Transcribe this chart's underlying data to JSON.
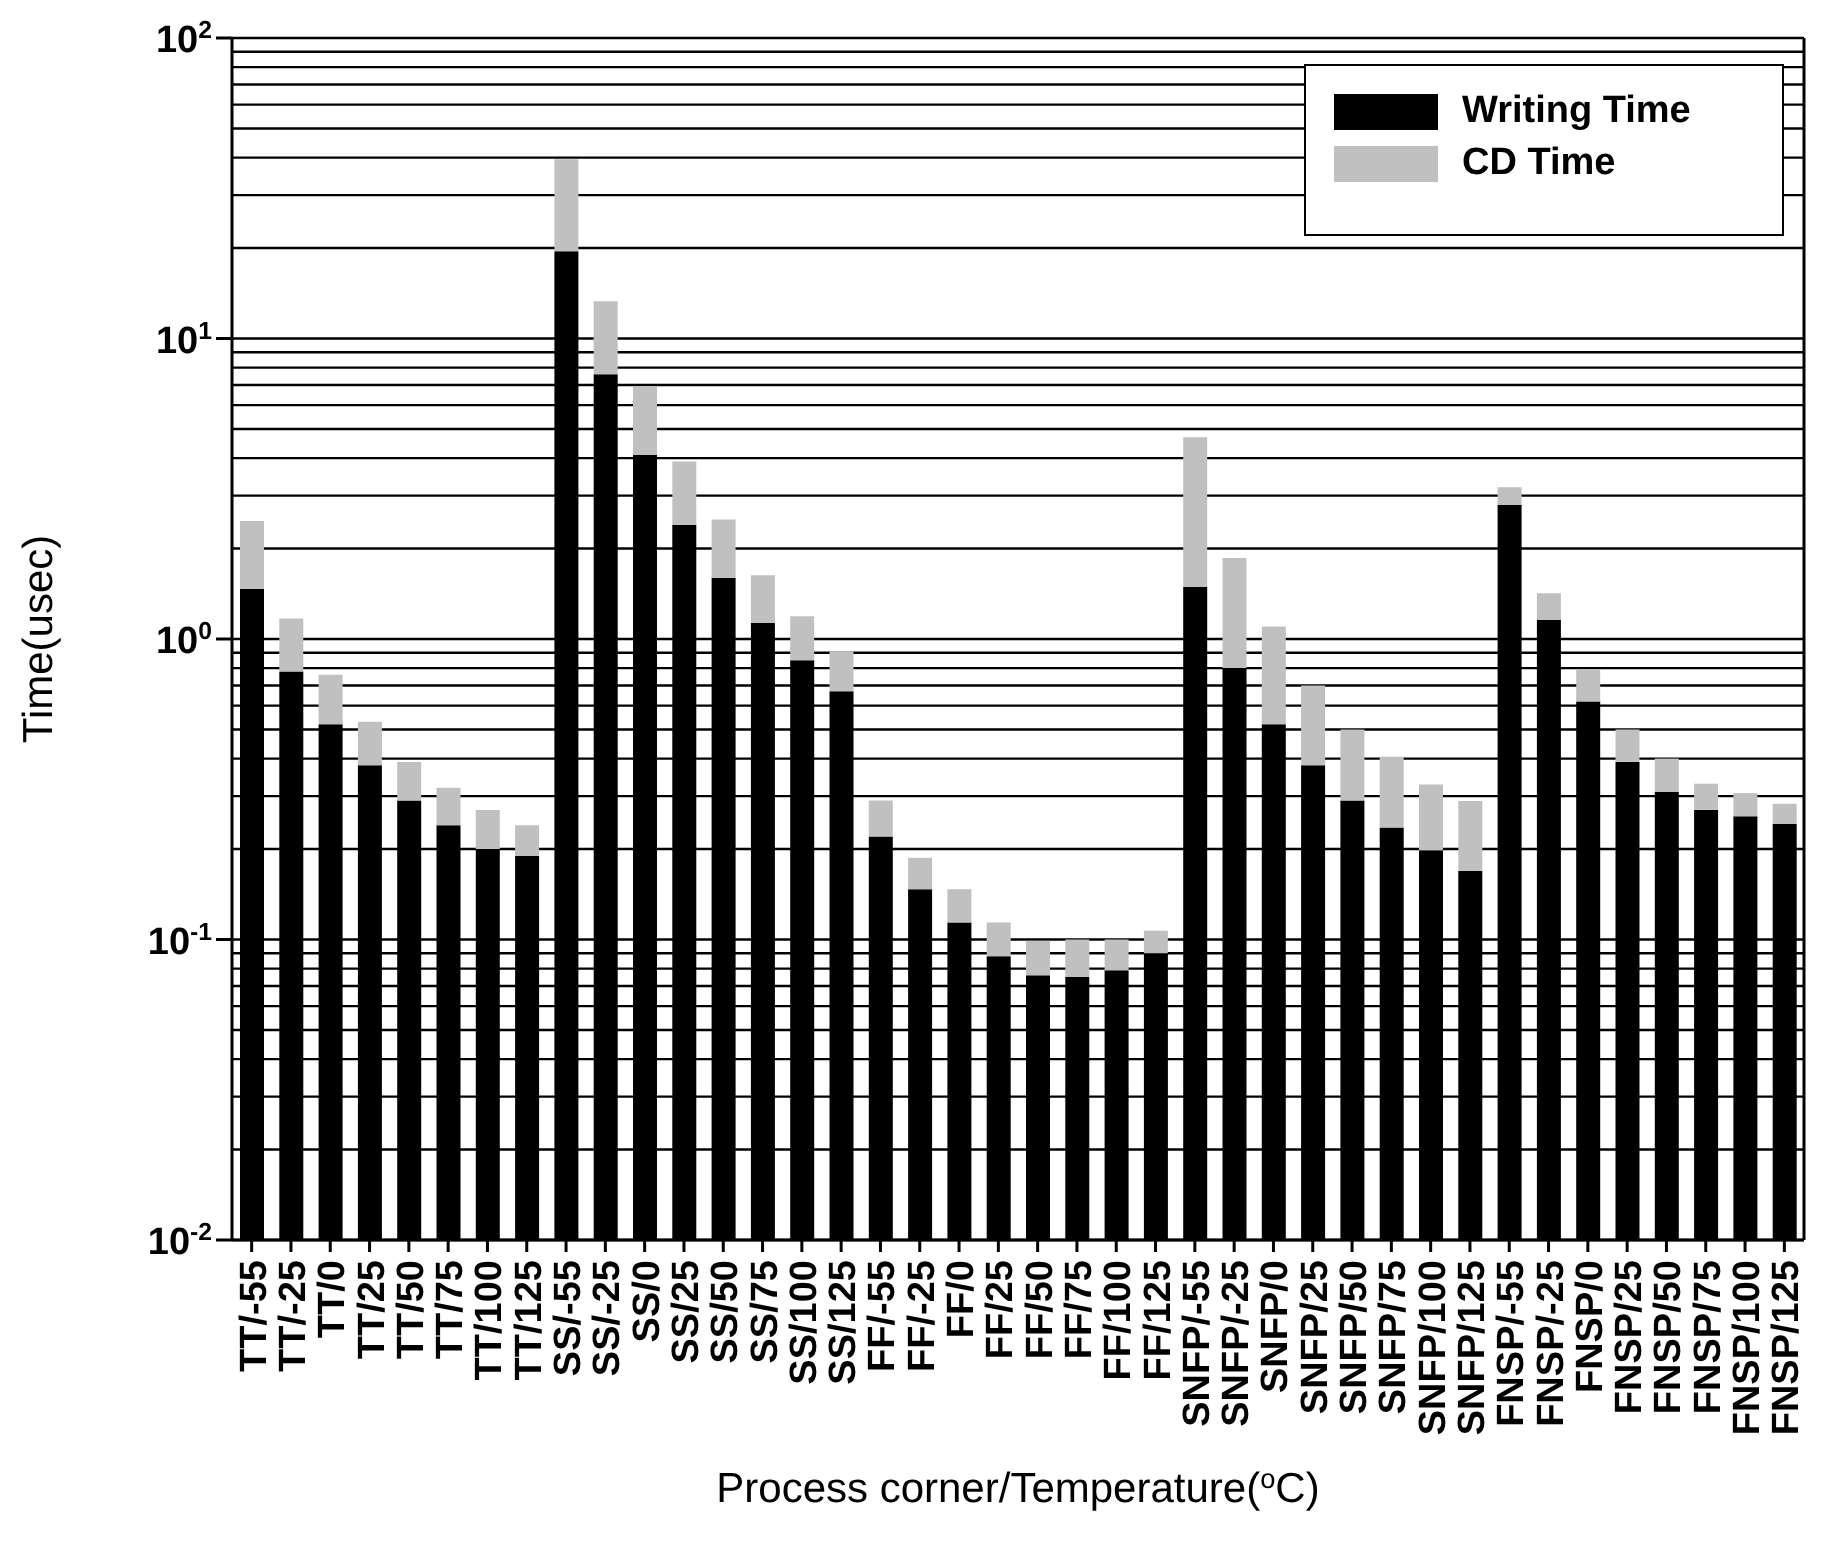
{
  "chart_data": {
    "type": "bar",
    "stacked": true,
    "log": true,
    "xlabel": "Process corner/Temperature($^{o}$C)",
    "ylabel": "Time(usec)",
    "categories": [
      "TT/-55",
      "TT/-25",
      "TT/0",
      "TT/25",
      "TT/50",
      "TT/75",
      "TT/100",
      "TT/125",
      "SS/-55",
      "SS/-25",
      "SS/0",
      "SS/25",
      "SS/50",
      "SS/75",
      "SS/100",
      "SS/125",
      "FF/-55",
      "FF/-25",
      "FF/0",
      "FF/25",
      "FF/50",
      "FF/75",
      "FF/100",
      "FF/125",
      "SNFP/-55",
      "SNFP/-25",
      "SNFP/0",
      "SNFP/25",
      "SNFP/50",
      "SNFP/75",
      "SNFP/100",
      "SNFP/125",
      "FNSP/-55",
      "FNSP/-25",
      "FNSP/0",
      "FNSP/25",
      "FNSP/50",
      "FNSP/75",
      "FNSP/100",
      "FNSP/125"
    ],
    "series": [
      {
        "name": "Writing Time",
        "color": "#000000",
        "values": [
          1.47,
          0.78,
          0.52,
          0.38,
          0.29,
          0.24,
          0.2,
          0.19,
          19.5,
          7.6,
          4.1,
          2.4,
          1.6,
          1.13,
          0.85,
          0.67,
          0.22,
          0.147,
          0.114,
          0.088,
          0.076,
          0.075,
          0.079,
          0.09,
          1.49,
          0.8,
          0.52,
          0.38,
          0.29,
          0.236,
          0.198,
          0.169,
          2.8,
          1.16,
          0.62,
          0.39,
          0.31,
          0.27,
          0.257,
          0.243
        ]
      },
      {
        "name": "CD Time",
        "color": "#c0c0c0",
        "values": [
          1.0,
          0.39,
          0.24,
          0.15,
          0.1,
          0.08,
          0.07,
          0.05,
          20,
          5.7,
          2.8,
          1.5,
          0.9,
          0.5,
          0.34,
          0.24,
          0.07,
          0.04,
          0.033,
          0.026,
          0.023,
          0.025,
          0.021,
          0.017,
          3.2,
          1.06,
          0.58,
          0.32,
          0.21,
          0.17,
          0.13,
          0.12,
          0.4,
          0.26,
          0.17,
          0.11,
          0.09,
          0.06,
          0.05,
          0.04
        ]
      }
    ],
    "ylim": [
      0.01,
      100
    ],
    "yticks": [
      {
        "value": 0.01,
        "label": "10$^{-2}$"
      },
      {
        "value": 0.02,
        "label": null
      },
      {
        "value": 0.03,
        "label": null
      },
      {
        "value": 0.04,
        "label": null
      },
      {
        "value": 0.05,
        "label": null
      },
      {
        "value": 0.06,
        "label": null
      },
      {
        "value": 0.07,
        "label": null
      },
      {
        "value": 0.08,
        "label": null
      },
      {
        "value": 0.09,
        "label": null
      },
      {
        "value": 0.1,
        "label": "10$^{-1}$"
      },
      {
        "value": 0.2,
        "label": null
      },
      {
        "value": 0.3,
        "label": null
      },
      {
        "value": 0.4,
        "label": null
      },
      {
        "value": 0.5,
        "label": null
      },
      {
        "value": 0.6,
        "label": null
      },
      {
        "value": 0.7,
        "label": null
      },
      {
        "value": 0.8,
        "label": null
      },
      {
        "value": 0.9,
        "label": null
      },
      {
        "value": 1,
        "label": "10$^{0}$"
      },
      {
        "value": 2,
        "label": null
      },
      {
        "value": 3,
        "label": null
      },
      {
        "value": 4,
        "label": null
      },
      {
        "value": 5,
        "label": null
      },
      {
        "value": 6,
        "label": null
      },
      {
        "value": 7,
        "label": null
      },
      {
        "value": 8,
        "label": null
      },
      {
        "value": 9,
        "label": null
      },
      {
        "value": 10,
        "label": "10$^{1}$"
      },
      {
        "value": 20,
        "label": null
      },
      {
        "value": 30,
        "label": null
      },
      {
        "value": 40,
        "label": null
      },
      {
        "value": 50,
        "label": null
      },
      {
        "value": 60,
        "label": null
      },
      {
        "value": 70,
        "label": null
      },
      {
        "value": 80,
        "label": null
      },
      {
        "value": 90,
        "label": null
      },
      {
        "value": 100,
        "label": "10$^{2}$"
      }
    ],
    "grid": "y",
    "legend": "top right"
  }
}
